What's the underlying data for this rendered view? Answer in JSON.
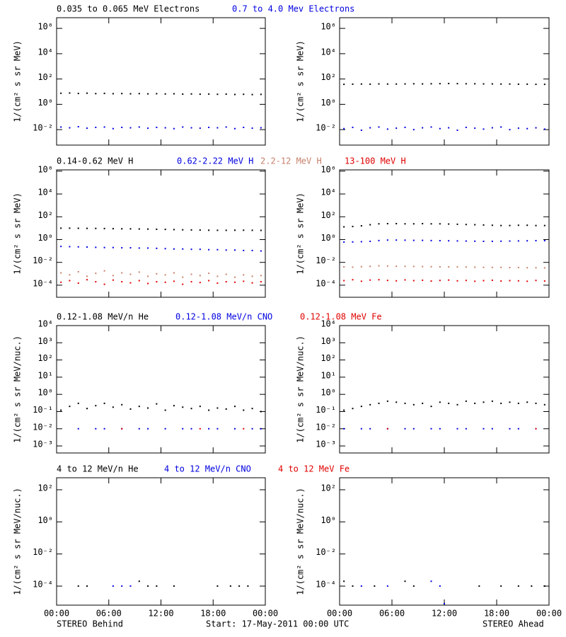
{
  "chart_data": [
    {
      "type": "scatter",
      "ylabel": "1/(cm² s sr MeV)",
      "log_y": true,
      "ylim": [
        0.0006,
        7000000
      ],
      "yticks": [
        {
          "value": 1000000,
          "label": "10⁶"
        },
        {
          "value": 10000,
          "label": "10⁴"
        },
        {
          "value": 100,
          "label": "10²"
        },
        {
          "value": 1,
          "label": "10⁰"
        },
        {
          "value": 0.01,
          "label": "10⁻²"
        }
      ],
      "x": [
        0.5,
        1.5,
        2.5,
        3.5,
        4.5,
        5.5,
        6.5,
        7.5,
        8.5,
        9.5,
        10.5,
        11.5,
        12.5,
        13.5,
        14.5,
        15.5,
        16.5,
        17.5,
        18.5,
        19.5,
        20.5,
        21.5,
        22.5,
        23.5
      ],
      "series": [
        {
          "name": "0.035 to 0.065 MeV Electrons",
          "color": "#000000",
          "values": [
            7.5,
            7.8,
            7.2,
            7.6,
            7.0,
            7.3,
            6.9,
            7.1,
            6.8,
            7.0,
            6.7,
            6.9,
            6.6,
            6.8,
            6.4,
            6.6,
            6.3,
            6.5,
            6.2,
            6.4,
            6.0,
            6.2,
            5.9,
            6.1
          ]
        },
        {
          "name": "0.7 to 4.0 Mev Electrons",
          "color": "#0000e0",
          "values": [
            0.016,
            0.014,
            0.017,
            0.013,
            0.015,
            0.016,
            0.012,
            0.015,
            0.014,
            0.016,
            0.013,
            0.015,
            0.014,
            0.012,
            0.016,
            0.014,
            0.013,
            0.015,
            0.014,
            0.016,
            0.012,
            0.015,
            0.013,
            0.014
          ]
        }
      ]
    },
    {
      "type": "scatter",
      "ylabel": "1/(cm² s sr MeV)",
      "log_y": true,
      "ylim": [
        0.0006,
        7000000
      ],
      "yticks": [
        {
          "value": 1000000,
          "label": "10⁶"
        },
        {
          "value": 10000,
          "label": "10⁴"
        },
        {
          "value": 100,
          "label": "10²"
        },
        {
          "value": 1,
          "label": "10⁰"
        },
        {
          "value": 0.01,
          "label": "10⁻²"
        }
      ],
      "x": [
        0.5,
        1.5,
        2.5,
        3.5,
        4.5,
        5.5,
        6.5,
        7.5,
        8.5,
        9.5,
        10.5,
        11.5,
        12.5,
        13.5,
        14.5,
        15.5,
        16.5,
        17.5,
        18.5,
        19.5,
        20.5,
        21.5,
        22.5,
        23.5
      ],
      "series": [
        {
          "color": "#000000",
          "values": [
            38,
            39,
            40,
            39,
            41,
            40,
            40,
            41,
            42,
            41,
            42,
            43,
            44,
            43,
            42,
            42,
            41,
            41,
            40,
            40,
            39,
            39,
            38,
            38
          ]
        },
        {
          "color": "#0000e0",
          "values": [
            0.012,
            0.015,
            0.009,
            0.014,
            0.016,
            0.011,
            0.013,
            0.015,
            0.01,
            0.014,
            0.016,
            0.012,
            0.014,
            0.009,
            0.015,
            0.013,
            0.011,
            0.014,
            0.016,
            0.01,
            0.013,
            0.012,
            0.014,
            0.011
          ]
        }
      ]
    },
    {
      "type": "scatter",
      "ylabel": "1/(cm² s sr MeV)",
      "log_y": true,
      "ylim": [
        8.7e-06,
        1300000
      ],
      "yticks": [
        {
          "value": 1000000,
          "label": "10⁶"
        },
        {
          "value": 10000,
          "label": "10⁴"
        },
        {
          "value": 100,
          "label": "10²"
        },
        {
          "value": 1,
          "label": "10⁰"
        },
        {
          "value": 0.01,
          "label": "10⁻²"
        },
        {
          "value": 0.0001,
          "label": "10⁻⁴"
        }
      ],
      "x": [
        0.5,
        1.5,
        2.5,
        3.5,
        4.5,
        5.5,
        6.5,
        7.5,
        8.5,
        9.5,
        10.5,
        11.5,
        12.5,
        13.5,
        14.5,
        15.5,
        16.5,
        17.5,
        18.5,
        19.5,
        20.5,
        21.5,
        22.5,
        23.5
      ],
      "series": [
        {
          "name": "0.14-0.62 MeV H",
          "color": "#000000",
          "values": [
            10,
            10,
            9.8,
            9.6,
            9.5,
            9.3,
            9.0,
            8.8,
            8.7,
            8.5,
            8.3,
            8.0,
            7.8,
            7.5,
            7.2,
            7.0,
            6.8,
            6.6,
            6.5,
            6.5,
            6.6,
            6.6,
            6.5,
            6.4
          ]
        },
        {
          "name": "0.62-2.22 MeV H",
          "color": "#0000e0",
          "values": [
            0.25,
            0.24,
            0.23,
            0.22,
            0.21,
            0.2,
            0.2,
            0.19,
            0.19,
            0.18,
            0.18,
            0.17,
            0.16,
            0.15,
            0.15,
            0.14,
            0.14,
            0.13,
            0.13,
            0.12,
            0.12,
            0.11,
            0.11,
            0.1
          ]
        },
        {
          "name": "2.2-12 MeV H",
          "color": "#c8806a",
          "values": [
            0.0012,
            0.0008,
            0.0015,
            0.0006,
            0.0011,
            0.0018,
            0.0007,
            0.0012,
            0.0009,
            0.0014,
            0.0006,
            0.001,
            0.0008,
            0.0012,
            0.0005,
            0.0009,
            0.0007,
            0.0011,
            0.0006,
            0.0009,
            0.0005,
            0.0008,
            0.0006,
            0.0007
          ]
        },
        {
          "name": "13-100 MeV H",
          "color": "#e00000",
          "values": [
            0.00018,
            0.00025,
            0.00015,
            0.0003,
            0.0002,
            0.00012,
            0.00028,
            0.0002,
            0.00016,
            0.00025,
            0.00014,
            0.0002,
            0.00018,
            0.00022,
            0.00012,
            0.0002,
            0.00017,
            0.00025,
            0.00015,
            0.0002,
            0.00018,
            0.00022,
            0.00016,
            0.0002
          ]
        }
      ]
    },
    {
      "type": "scatter",
      "ylabel": "1/(cm² s sr MeV)",
      "log_y": true,
      "ylim": [
        8.7e-06,
        1300000
      ],
      "yticks": [
        {
          "value": 1000000,
          "label": "10⁶"
        },
        {
          "value": 10000,
          "label": "10⁴"
        },
        {
          "value": 100,
          "label": "10²"
        },
        {
          "value": 1,
          "label": "10⁰"
        },
        {
          "value": 0.01,
          "label": "10⁻²"
        },
        {
          "value": 0.0001,
          "label": "10⁻⁴"
        }
      ],
      "x": [
        0.5,
        1.5,
        2.5,
        3.5,
        4.5,
        5.5,
        6.5,
        7.5,
        8.5,
        9.5,
        10.5,
        11.5,
        12.5,
        13.5,
        14.5,
        15.5,
        16.5,
        17.5,
        18.5,
        19.5,
        20.5,
        21.5,
        22.5,
        23.5
      ],
      "series": [
        {
          "color": "#000000",
          "values": [
            13,
            14,
            16,
            20,
            24,
            25,
            25,
            24,
            24,
            25,
            24,
            24,
            23,
            22,
            21,
            20,
            19,
            18,
            17,
            17,
            18,
            18,
            17,
            17
          ]
        },
        {
          "color": "#0000e0",
          "values": [
            0.6,
            0.62,
            0.65,
            0.7,
            0.82,
            0.9,
            0.9,
            0.88,
            0.85,
            0.85,
            0.82,
            0.8,
            0.78,
            0.76,
            0.74,
            0.72,
            0.7,
            0.7,
            0.72,
            0.74,
            0.76,
            0.78,
            0.8,
            0.8
          ]
        },
        {
          "color": "#c8806a",
          "values": [
            0.004,
            0.0038,
            0.0042,
            0.0045,
            0.005,
            0.0048,
            0.0046,
            0.0045,
            0.0044,
            0.0043,
            0.0042,
            0.0041,
            0.004,
            0.004,
            0.0039,
            0.0038,
            0.0037,
            0.0036,
            0.0036,
            0.0035,
            0.0035,
            0.0034,
            0.0034,
            0.0033
          ]
        },
        {
          "color": "#e00000",
          "values": [
            0.00025,
            0.0003,
            0.00022,
            0.00028,
            0.0003,
            0.00026,
            0.00024,
            0.00029,
            0.00025,
            0.00027,
            0.00023,
            0.00026,
            0.00028,
            0.00024,
            0.00026,
            0.00022,
            0.00025,
            0.00027,
            0.00023,
            0.00025,
            0.00024,
            0.00022,
            0.00026,
            0.00023
          ]
        }
      ]
    },
    {
      "type": "scatter",
      "ylabel": "1/(cm² s sr MeV/nuc.)",
      "log_y": true,
      "ylim": [
        0.00039,
        10000
      ],
      "yticks": [
        {
          "value": 10000,
          "label": "10⁴"
        },
        {
          "value": 1000,
          "label": "10³"
        },
        {
          "value": 100,
          "label": "10²"
        },
        {
          "value": 10,
          "label": "10¹"
        },
        {
          "value": 1,
          "label": "10⁰"
        },
        {
          "value": 0.1,
          "label": "10⁻¹"
        },
        {
          "value": 0.01,
          "label": "10⁻²"
        },
        {
          "value": 0.001,
          "label": "10⁻³"
        }
      ],
      "x": [
        0.5,
        1.5,
        2.5,
        3.5,
        4.5,
        5.5,
        6.5,
        7.5,
        8.5,
        9.5,
        10.5,
        11.5,
        12.5,
        13.5,
        14.5,
        15.5,
        16.5,
        17.5,
        18.5,
        19.5,
        20.5,
        21.5,
        22.5,
        23.5
      ],
      "series": [
        {
          "name": "0.12-1.08 MeV/n He",
          "color": "#000000",
          "values": [
            0.12,
            0.2,
            0.3,
            0.15,
            0.22,
            0.3,
            0.18,
            0.25,
            0.14,
            0.2,
            0.16,
            0.28,
            0.12,
            0.22,
            0.18,
            0.15,
            0.2,
            0.12,
            0.16,
            0.14,
            0.2,
            0.12,
            0.15,
            0.1
          ]
        },
        {
          "name": "0.12-1.08 MeV/n CNO",
          "color": "#0000e0",
          "values": [
            null,
            null,
            0.01,
            null,
            0.01,
            0.01,
            null,
            0.01,
            null,
            0.01,
            0.01,
            null,
            0.01,
            null,
            0.01,
            0.01,
            null,
            0.01,
            0.01,
            null,
            0.01,
            null,
            0.01,
            0.01
          ]
        },
        {
          "name": "0.12-1.08 MeV Fe",
          "color": "#e00000",
          "values": [
            null,
            null,
            null,
            null,
            null,
            null,
            null,
            0.01,
            null,
            null,
            null,
            null,
            null,
            null,
            null,
            null,
            0.01,
            null,
            null,
            null,
            null,
            0.01,
            null,
            null
          ]
        }
      ]
    },
    {
      "type": "scatter",
      "ylabel": "1/(cm² s sr MeV/nuc.)",
      "log_y": true,
      "ylim": [
        0.00039,
        10000
      ],
      "yticks": [
        {
          "value": 10000,
          "label": "10⁴"
        },
        {
          "value": 1000,
          "label": "10³"
        },
        {
          "value": 100,
          "label": "10²"
        },
        {
          "value": 10,
          "label": "10¹"
        },
        {
          "value": 1,
          "label": "10⁰"
        },
        {
          "value": 0.1,
          "label": "10⁻¹"
        },
        {
          "value": 0.01,
          "label": "10⁻²"
        },
        {
          "value": 0.001,
          "label": "10⁻³"
        }
      ],
      "x": [
        0.5,
        1.5,
        2.5,
        3.5,
        4.5,
        5.5,
        6.5,
        7.5,
        8.5,
        9.5,
        10.5,
        11.5,
        12.5,
        13.5,
        14.5,
        15.5,
        16.5,
        17.5,
        18.5,
        19.5,
        20.5,
        21.5,
        22.5,
        23.5
      ],
      "series": [
        {
          "color": "#000000",
          "values": [
            0.12,
            0.15,
            0.2,
            0.25,
            0.3,
            0.4,
            0.35,
            0.3,
            0.25,
            0.3,
            0.2,
            0.35,
            0.3,
            0.25,
            0.4,
            0.3,
            0.35,
            0.4,
            0.3,
            0.35,
            0.3,
            0.35,
            0.3,
            0.25
          ]
        },
        {
          "color": "#0000e0",
          "values": [
            0.01,
            null,
            0.01,
            0.01,
            null,
            0.01,
            null,
            0.01,
            0.01,
            null,
            0.01,
            0.01,
            null,
            0.01,
            0.01,
            null,
            0.01,
            0.01,
            null,
            0.01,
            0.01,
            null,
            0.01,
            null
          ]
        },
        {
          "color": "#e00000",
          "values": [
            null,
            null,
            null,
            null,
            null,
            0.01,
            null,
            null,
            null,
            null,
            null,
            null,
            null,
            null,
            null,
            null,
            null,
            null,
            null,
            null,
            null,
            null,
            0.01,
            null
          ]
        }
      ]
    },
    {
      "type": "scatter",
      "ylabel": "1/(cm² s sr MeV/nuc.)",
      "log_y": true,
      "ylim": [
        6.5e-06,
        560
      ],
      "yticks": [
        {
          "value": 100,
          "label": "10²"
        },
        {
          "value": 1,
          "label": "10⁰"
        },
        {
          "value": 0.01,
          "label": "10⁻²"
        },
        {
          "value": 0.0001,
          "label": "10⁻⁴"
        }
      ],
      "series": [
        {
          "name": "4 to 12 MeV/n He",
          "color": "#000000",
          "x": [
            2.5,
            3.5,
            9.5,
            10.5,
            11.5,
            13.5,
            18.5,
            20,
            21,
            22
          ],
          "values": [
            0.0001,
            0.0001,
            0.0002,
            0.0001,
            0.0001,
            0.0001,
            0.0001,
            0.0001,
            0.0001,
            0.0001
          ]
        },
        {
          "name": "4 to 12 MeV/n CNO",
          "color": "#0000e0",
          "x": [
            6.5,
            7.5,
            8.5
          ],
          "values": [
            0.0001,
            0.0001,
            0.0001
          ]
        },
        {
          "name": "4 to 12 MeV Fe",
          "color": "#e00000",
          "x": [],
          "values": []
        }
      ]
    },
    {
      "type": "scatter",
      "ylabel": "1/(cm² s sr MeV/nuc.)",
      "log_y": true,
      "ylim": [
        6.5e-06,
        560
      ],
      "yticks": [
        {
          "value": 100,
          "label": "10²"
        },
        {
          "value": 1,
          "label": "10⁰"
        },
        {
          "value": 0.01,
          "label": "10⁻²"
        },
        {
          "value": 0.0001,
          "label": "10⁻⁴"
        }
      ],
      "series": [
        {
          "color": "#000000",
          "x": [
            0.5,
            1.5,
            4,
            7.5,
            8.5,
            16,
            18.5,
            20.5,
            22,
            23.5
          ],
          "values": [
            0.0002,
            0.0001,
            0.0001,
            0.0002,
            0.0001,
            0.0001,
            0.0001,
            0.0001,
            0.0001,
            0.0001
          ]
        },
        {
          "color": "#0000e0",
          "x": [
            2.5,
            5.5,
            10.5,
            11.5,
            12
          ],
          "values": [
            0.0001,
            0.0001,
            0.0002,
            0.0001,
            8e-06
          ]
        }
      ]
    }
  ],
  "x_axis": {
    "xlim": [
      0,
      24
    ],
    "xticks": [
      {
        "value": 0,
        "label": "00:00"
      },
      {
        "value": 6,
        "label": "06:00"
      },
      {
        "value": 12,
        "label": "12:00"
      },
      {
        "value": 18,
        "label": "18:00"
      },
      {
        "value": 24,
        "label": "00:00"
      }
    ]
  },
  "footer": {
    "left": "STEREO Behind",
    "center": "Start: 17-May-2011 00:00 UTC",
    "right": "STEREO Ahead"
  }
}
